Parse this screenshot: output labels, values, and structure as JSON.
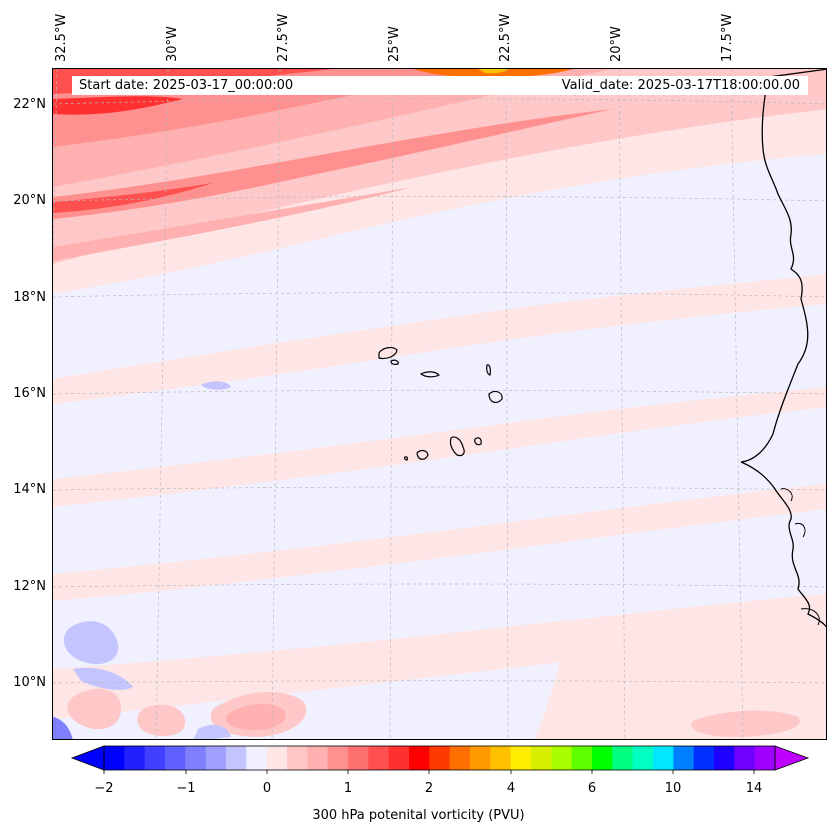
{
  "header": {
    "start_date": "Start date: 2025-03-17_00:00:00",
    "valid_date": "Valid_date: 2025-03-17T18:00:00.00"
  },
  "longitude_labels": [
    "32.5°W",
    "30°W",
    "27.5°W",
    "25°W",
    "22.5°W",
    "20°W",
    "17.5°W"
  ],
  "latitude_labels": [
    "22°N",
    "20°N",
    "18°N",
    "16°N",
    "14°N",
    "12°N",
    "10°N"
  ],
  "colorbar": {
    "title": "300 hPa potenital vorticity (PVU)",
    "tick_labels": [
      "−2",
      "−1",
      "0",
      "1",
      "2",
      "4",
      "6",
      "10",
      "14"
    ],
    "colors": [
      "#0000ff",
      "#2020ff",
      "#4040ff",
      "#6060ff",
      "#8080ff",
      "#a0a0ff",
      "#c4c4ff",
      "#f0f0ff",
      "#ffe6e6",
      "#ffc8c8",
      "#ffb0b0",
      "#ff9090",
      "#ff7070",
      "#ff5050",
      "#ff3030",
      "#ff0000",
      "#ff3a00",
      "#ff7000",
      "#ff9a00",
      "#ffc000",
      "#ffee00",
      "#d8f000",
      "#a8ff00",
      "#60ff00",
      "#00ff00",
      "#00ff80",
      "#00ffc0",
      "#00e8ff",
      "#0080ff",
      "#0030ff",
      "#2000ff",
      "#7000ff",
      "#a000ff"
    ],
    "under_color": "#0000ff",
    "over_color": "#c000ff"
  },
  "map": {
    "background_field": "#f0f0ff",
    "coastline_color": "#000000",
    "gridline_color": "#b8b8b8"
  }
}
